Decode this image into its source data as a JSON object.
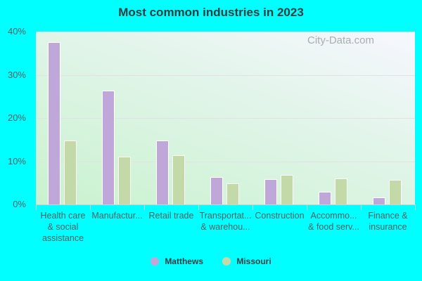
{
  "chart_data": {
    "type": "bar",
    "title": "Most common industries in 2023",
    "xlabel": "",
    "ylabel": "",
    "ylim": [
      0,
      40
    ],
    "yticks": [
      "0%",
      "10%",
      "20%",
      "30%",
      "40%"
    ],
    "grid": true,
    "legend_position": "bottom",
    "categories": [
      "Health care & social assistance",
      "Manufactur...",
      "Retail trade",
      "Transportat... & warehou...",
      "Construction",
      "Accommo... & food serv...",
      "Finance & insurance"
    ],
    "category_lines": [
      [
        "Health care",
        "& social",
        "assistance"
      ],
      [
        "Manufactur..."
      ],
      [
        "Retail trade"
      ],
      [
        "Transportat...",
        "& warehou..."
      ],
      [
        "Construction"
      ],
      [
        "Accommo...",
        "& food serv..."
      ],
      [
        "Finance &",
        "insurance"
      ]
    ],
    "series": [
      {
        "name": "Matthews",
        "color": "#bfa8d9",
        "values": [
          37.5,
          26.4,
          14.8,
          6.3,
          5.8,
          3.0,
          1.6
        ]
      },
      {
        "name": "Missouri",
        "color": "#c4d9a8",
        "values": [
          14.8,
          11.0,
          11.4,
          4.8,
          6.8,
          6.1,
          5.7
        ]
      }
    ]
  },
  "watermark": "City-Data.com"
}
